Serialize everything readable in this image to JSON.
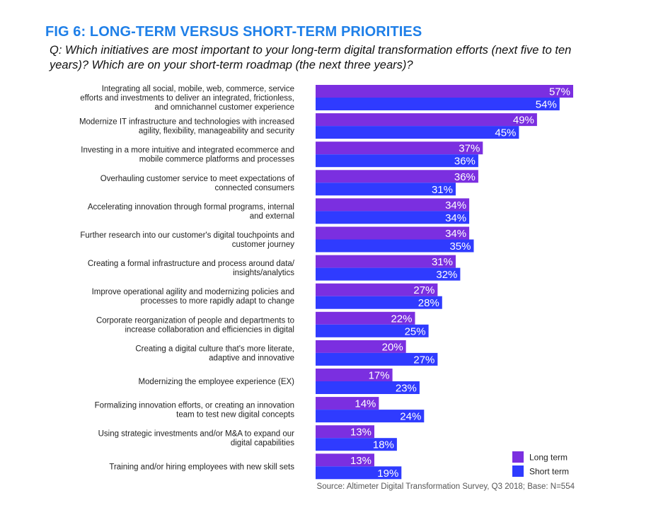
{
  "header": {
    "title": "FIG 6: LONG-TERM VERSUS SHORT-TERM PRIORITIES",
    "question": "Q: Which initiatives are most important to your long-term digital transformation efforts (next five to ten years)? Which are on your short-term roadmap (the next three years)?"
  },
  "footer": {
    "source": "Source: Altimeter Digital Transformation Survey, Q3 2018; Base: N=554"
  },
  "colors": {
    "title": "#1e7fe8",
    "long_term": "#7b2fe0",
    "short_term": "#2f3bff"
  },
  "chart_data": {
    "type": "bar",
    "orientation": "horizontal",
    "title": "FIG 6: LONG-TERM VERSUS SHORT-TERM PRIORITIES",
    "categories": [
      [
        "Integrating all social, mobile, web, commerce, service",
        "efforts and investments to deliver an integrated, frictionless,",
        "and omnichannel customer experience"
      ],
      [
        "Modernize IT infrastructure and technologies with increased",
        "agility, flexibility, manageability and security"
      ],
      [
        "Investing in a more intuitive and integrated ecommerce and",
        "mobile commerce platforms and processes"
      ],
      [
        "Overhauling customer service to meet expectations of",
        "connected consumers"
      ],
      [
        "Accelerating innovation through formal programs, internal",
        "and external"
      ],
      [
        "Further research into our customer's digital touchpoints and",
        "customer journey"
      ],
      [
        "Creating a formal infrastructure and process around data/",
        "insights/analytics"
      ],
      [
        "Improve operational agility and modernizing policies and",
        "processes to more rapidly adapt to change"
      ],
      [
        "Corporate reorganization of people and departments to",
        "increase collaboration and efficiencies in digital"
      ],
      [
        "Creating a digital culture that's more literate,",
        "adaptive and innovative"
      ],
      [
        "Modernizing the employee experience (EX)"
      ],
      [
        "Formalizing innovation efforts, or creating an innovation",
        "team to test new digital concepts"
      ],
      [
        "Using strategic investments and/or M&A to expand our",
        "digital capabilities"
      ],
      [
        "Training and/or hiring employees with new skill sets"
      ]
    ],
    "series": [
      {
        "name": "Long term",
        "color": "#7b2fe0",
        "values": [
          57,
          49,
          37,
          36,
          34,
          34,
          31,
          27,
          22,
          20,
          17,
          14,
          13,
          13
        ],
        "labels": [
          "57%",
          "49%",
          "37%",
          "36%",
          "34%",
          "34%",
          "31%",
          "27%",
          "22%",
          "20%",
          "17%",
          "14%",
          "13%",
          "13%"
        ]
      },
      {
        "name": "Short term",
        "color": "#2f3bff",
        "values": [
          54,
          45,
          36,
          31,
          34,
          35,
          32,
          28,
          25,
          27,
          23,
          24,
          18,
          19
        ],
        "labels": [
          "54%",
          "45%",
          "36%",
          "31%",
          "34%",
          "35%",
          "32%",
          "28%",
          "25%",
          "27%",
          "23%",
          "24%",
          "18%",
          "19%"
        ]
      }
    ],
    "legend": {
      "position": "bottom-right",
      "entries": [
        "Long term",
        "Short term"
      ]
    },
    "xlim": [
      0,
      57
    ],
    "grid": false
  }
}
